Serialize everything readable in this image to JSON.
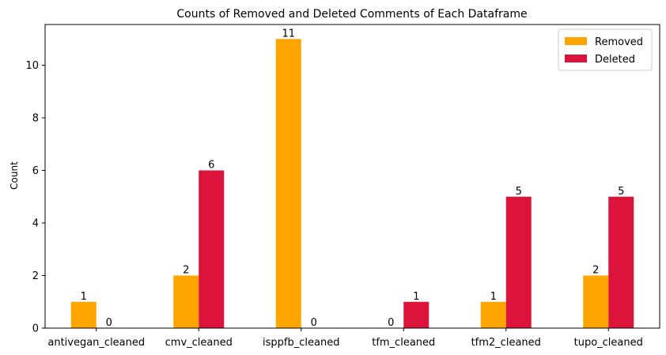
{
  "chart_data": {
    "type": "bar",
    "title": "Counts of Removed and Deleted Comments of Each Dataframe",
    "xlabel": "",
    "ylabel": "Count",
    "categories": [
      "antivegan_cleaned",
      "cmv_cleaned",
      "isppfb_cleaned",
      "tfm_cleaned",
      "tfm2_cleaned",
      "tupo_cleaned"
    ],
    "series": [
      {
        "name": "Removed",
        "values": [
          1,
          2,
          11,
          0,
          1,
          2
        ],
        "color": "#FFA500"
      },
      {
        "name": "Deleted",
        "values": [
          0,
          6,
          0,
          1,
          5,
          5
        ],
        "color": "#DC143C"
      }
    ],
    "ylim": [
      0,
      11.55
    ],
    "yticks": [
      0,
      2,
      4,
      6,
      8,
      10
    ],
    "grid": false,
    "legend": "top-right",
    "data_labels": true
  }
}
